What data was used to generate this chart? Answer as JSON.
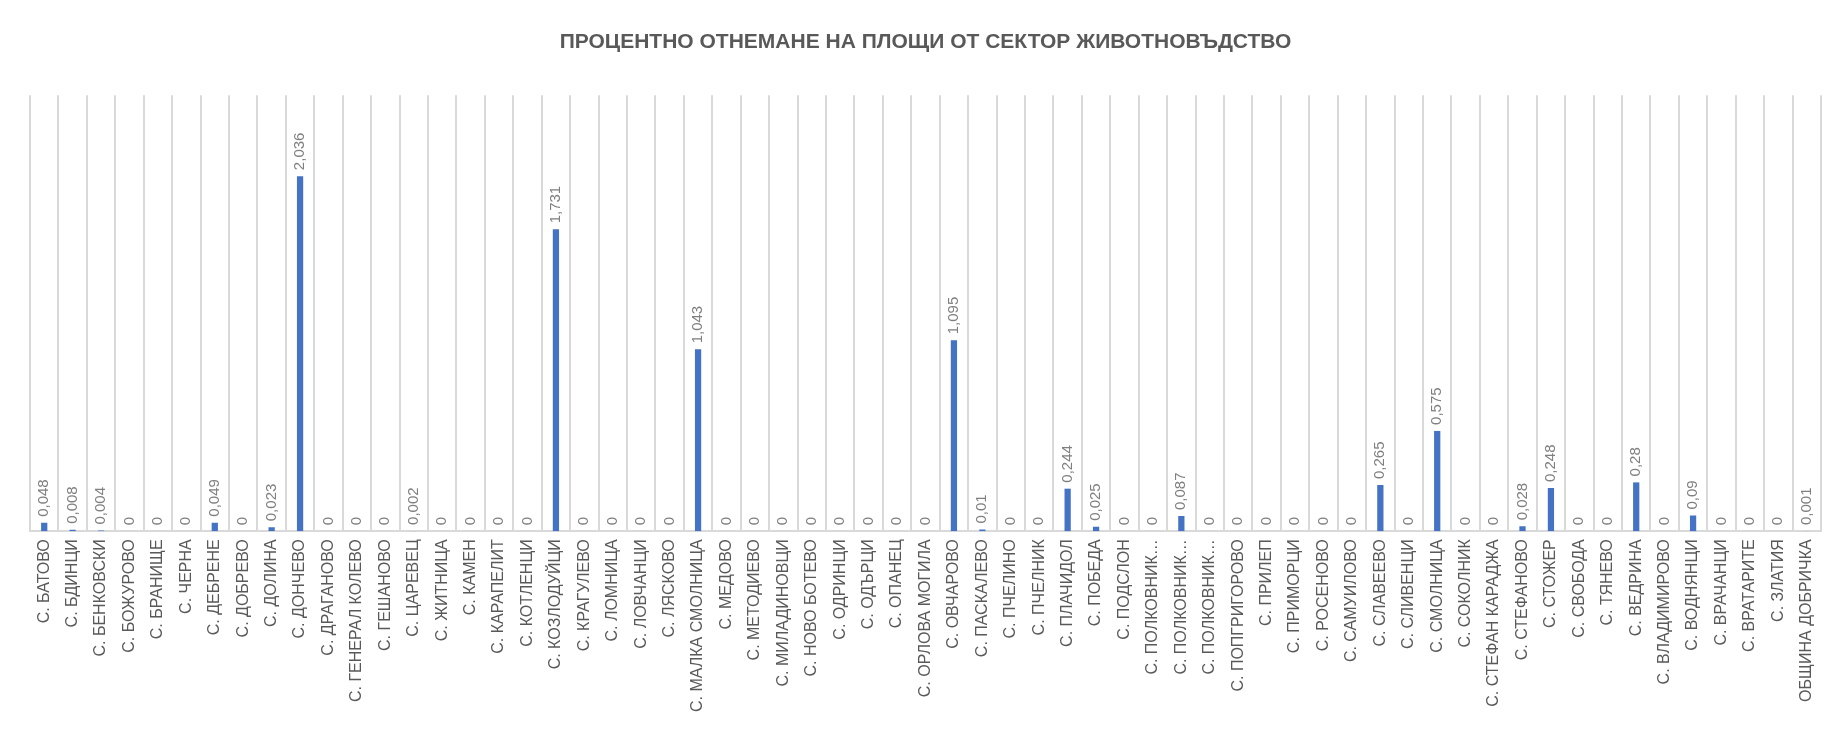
{
  "chart_data": {
    "type": "bar",
    "title": "ПРОЦЕНТНО ОТНЕМАНЕ НА ПЛОЩИ ОТ СЕКТОР ЖИВОТНОВЪДСТВО",
    "categories": [
      "С. БАТОВО",
      "С. БДИНЦИ",
      "С. БЕНКОВСКИ",
      "С. БОЖУРОВО",
      "С. БРАНИЩЕ",
      "С. ЧЕРНА",
      "С. ДЕБРЕНЕ",
      "С. ДОБРЕВО",
      "С. ДОЛИНА",
      "С. ДОНЧЕВО",
      "С. ДРАГАНОВО",
      "С. ГЕНЕРАЛ КОЛЕВО",
      "С. ГЕШАНОВО",
      "С. ЦАРЕВЕЦ",
      "С. ЖИТНИЦА",
      "С. КАМЕН",
      "С. КАРАПЕЛИТ",
      "С. КОТЛЕНЦИ",
      "С. КОЗЛОДУЙЦИ",
      "С. КРАГУЛЕВО",
      "С. ЛОМНИЦА",
      "С. ЛОВЧАНЦИ",
      "С. ЛЯСКОВО",
      "С. МАЛКА СМОЛНИЦА",
      "С. МЕДОВО",
      "С. МЕТОДИЕВО",
      "С. МИЛАДИНОВЦИ",
      "С. НОВО БОТЕВО",
      "С. ОДРИНЦИ",
      "С. ОДЪРЦИ",
      "С. ОПАНЕЦ",
      "С. ОРЛОВА МОГИЛА",
      "С. ОВЧАРОВО",
      "С. ПАСКАЛЕВО",
      "С. ПЧЕЛИНО",
      "С. ПЧЕЛНИК",
      "С. ПЛАЧИДОЛ",
      "С. ПОБЕДА",
      "С. ПОДСЛОН",
      "С. ПОЛКОВНИК…",
      "С. ПОЛКОВНИК…",
      "С. ПОЛКОВНИК…",
      "С. ПОПГРИГОРОВО",
      "С. ПРИЛЕП",
      "С. ПРИМОРЦИ",
      "С. РОСЕНОВО",
      "С. САМУИЛОВО",
      "С. СЛАВЕЕВО",
      "С. СЛИВЕНЦИ",
      "С. СМОЛНИЦА",
      "С. СОКОЛНИК",
      "С. СТЕФАН КАРАДЖА",
      "С. СТЕФАНОВО",
      "С. СТОЖЕР",
      "С. СВОБОДА",
      "С. ТЯНЕВО",
      "С. ВЕДРИНА",
      "С. ВЛАДИМИРОВО",
      "С. ВОДНЯНЦИ",
      "С. ВРАЧАНЦИ",
      "С. ВРАТАРИТЕ",
      "С. ЗЛАТИЯ",
      "ОБЩИНА ДОБРИЧКА"
    ],
    "values": [
      0.048,
      0.008,
      0.004,
      0,
      0,
      0,
      0.049,
      0,
      0.023,
      2.036,
      0,
      0,
      0,
      0.002,
      0,
      0,
      0,
      0,
      1.731,
      0,
      0,
      0,
      0,
      1.043,
      0,
      0,
      0,
      0,
      0,
      0,
      0,
      0,
      1.095,
      0.01,
      0,
      0,
      0.244,
      0.025,
      0,
      0,
      0.087,
      0,
      0,
      0,
      0,
      0,
      0,
      0.265,
      0,
      0.575,
      0,
      0,
      0.028,
      0.248,
      0,
      0,
      0.28,
      0,
      0.09,
      0,
      0,
      0,
      0.001
    ],
    "value_labels": [
      "0,048",
      "0,008",
      "0,004",
      "0",
      "0",
      "0",
      "0,049",
      "0",
      "0,023",
      "2,036",
      "0",
      "0",
      "0",
      "0,002",
      "0",
      "0",
      "0",
      "0",
      "1,731",
      "0",
      "0",
      "0",
      "0",
      "1,043",
      "0",
      "0",
      "0",
      "0",
      "0",
      "0",
      "0",
      "0",
      "1,095",
      "0,01",
      "0",
      "0",
      "0,244",
      "0,025",
      "0",
      "0",
      "0,087",
      "0",
      "0",
      "0",
      "0",
      "0",
      "0",
      "0,265",
      "0",
      "0,575",
      "0",
      "0",
      "0,028",
      "0,248",
      "0",
      "0",
      "0,28",
      "0",
      "0,09",
      "0",
      "0",
      "0",
      "0,001"
    ],
    "color": "#4472c4",
    "grid": "x",
    "legend": false,
    "tick_labels": "x"
  }
}
